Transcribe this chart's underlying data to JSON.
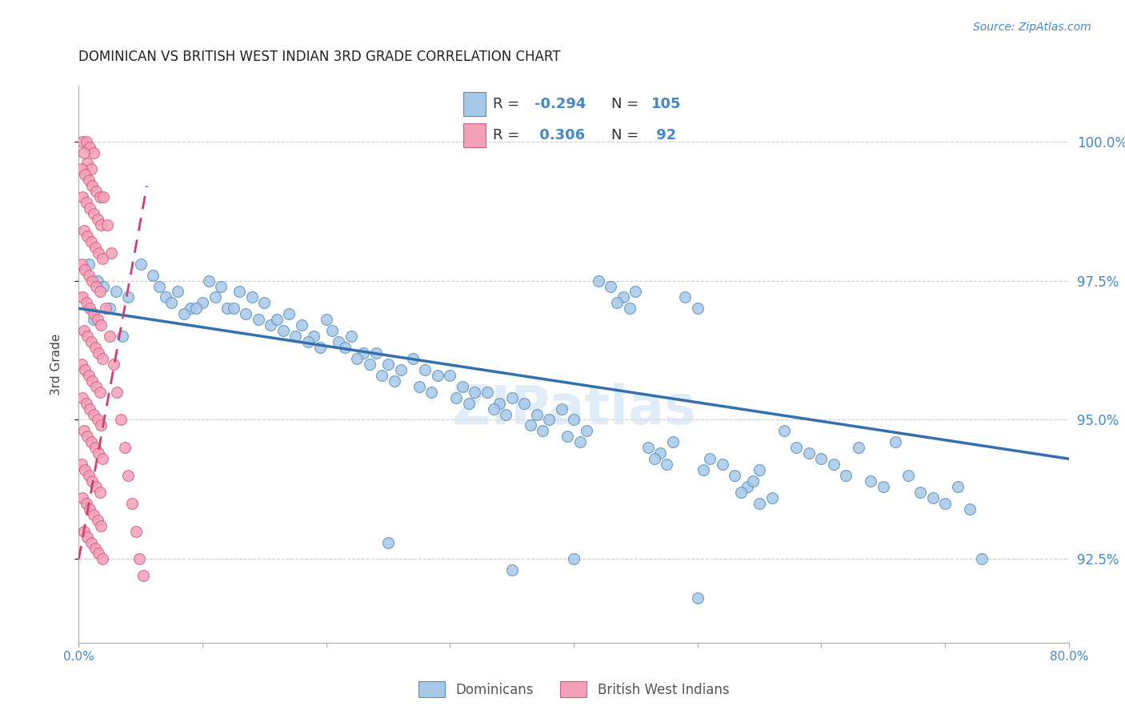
{
  "title": "DOMINICAN VS BRITISH WEST INDIAN 3RD GRADE CORRELATION CHART",
  "source": "Source: ZipAtlas.com",
  "ylabel": "3rd Grade",
  "legend_blue_label": "Dominicans",
  "legend_pink_label": "British West Indians",
  "xmin": 0.0,
  "xmax": 80.0,
  "ymin": 91.0,
  "ymax": 101.0,
  "yticks": [
    92.5,
    95.0,
    97.5,
    100.0
  ],
  "ytick_labels": [
    "92.5%",
    "95.0%",
    "97.5%",
    "100.0%"
  ],
  "blue_color": "#a8c8e8",
  "pink_color": "#f4a0b8",
  "blue_edge": "#5590c0",
  "pink_edge": "#d06080",
  "trend_blue": "#3370b0",
  "trend_pink": "#d04070",
  "blue_scatter": [
    [
      0.8,
      97.8
    ],
    [
      1.5,
      97.5
    ],
    [
      2.0,
      97.4
    ],
    [
      3.0,
      97.3
    ],
    [
      4.0,
      97.2
    ],
    [
      2.5,
      97.0
    ],
    [
      1.2,
      96.8
    ],
    [
      3.5,
      96.5
    ],
    [
      5.0,
      97.8
    ],
    [
      6.0,
      97.6
    ],
    [
      7.0,
      97.2
    ],
    [
      8.0,
      97.3
    ],
    [
      9.0,
      97.0
    ],
    [
      10.0,
      97.1
    ],
    [
      6.5,
      97.4
    ],
    [
      7.5,
      97.1
    ],
    [
      8.5,
      96.9
    ],
    [
      9.5,
      97.0
    ],
    [
      11.0,
      97.2
    ],
    [
      12.0,
      97.0
    ],
    [
      10.5,
      97.5
    ],
    [
      11.5,
      97.4
    ],
    [
      13.0,
      97.3
    ],
    [
      14.0,
      97.2
    ],
    [
      15.0,
      97.1
    ],
    [
      12.5,
      97.0
    ],
    [
      13.5,
      96.9
    ],
    [
      14.5,
      96.8
    ],
    [
      15.5,
      96.7
    ],
    [
      16.0,
      96.8
    ],
    [
      17.0,
      96.9
    ],
    [
      16.5,
      96.6
    ],
    [
      17.5,
      96.5
    ],
    [
      18.0,
      96.7
    ],
    [
      19.0,
      96.5
    ],
    [
      20.0,
      96.8
    ],
    [
      18.5,
      96.4
    ],
    [
      19.5,
      96.3
    ],
    [
      20.5,
      96.6
    ],
    [
      21.0,
      96.4
    ],
    [
      22.0,
      96.5
    ],
    [
      23.0,
      96.2
    ],
    [
      21.5,
      96.3
    ],
    [
      22.5,
      96.1
    ],
    [
      23.5,
      96.0
    ],
    [
      24.0,
      96.2
    ],
    [
      25.0,
      96.0
    ],
    [
      26.0,
      95.9
    ],
    [
      24.5,
      95.8
    ],
    [
      25.5,
      95.7
    ],
    [
      27.0,
      96.1
    ],
    [
      28.0,
      95.9
    ],
    [
      29.0,
      95.8
    ],
    [
      27.5,
      95.6
    ],
    [
      28.5,
      95.5
    ],
    [
      30.0,
      95.8
    ],
    [
      31.0,
      95.6
    ],
    [
      32.0,
      95.5
    ],
    [
      30.5,
      95.4
    ],
    [
      31.5,
      95.3
    ],
    [
      33.0,
      95.5
    ],
    [
      34.0,
      95.3
    ],
    [
      35.0,
      95.4
    ],
    [
      33.5,
      95.2
    ],
    [
      34.5,
      95.1
    ],
    [
      36.0,
      95.3
    ],
    [
      37.0,
      95.1
    ],
    [
      38.0,
      95.0
    ],
    [
      36.5,
      94.9
    ],
    [
      37.5,
      94.8
    ],
    [
      39.0,
      95.2
    ],
    [
      40.0,
      95.0
    ],
    [
      41.0,
      94.8
    ],
    [
      39.5,
      94.7
    ],
    [
      40.5,
      94.6
    ],
    [
      42.0,
      97.5
    ],
    [
      43.0,
      97.4
    ],
    [
      44.0,
      97.2
    ],
    [
      45.0,
      97.3
    ],
    [
      43.5,
      97.1
    ],
    [
      44.5,
      97.0
    ],
    [
      46.0,
      94.5
    ],
    [
      47.0,
      94.4
    ],
    [
      48.0,
      94.6
    ],
    [
      46.5,
      94.3
    ],
    [
      47.5,
      94.2
    ],
    [
      49.0,
      97.2
    ],
    [
      50.0,
      97.0
    ],
    [
      50.5,
      94.1
    ],
    [
      51.0,
      94.3
    ],
    [
      52.0,
      94.2
    ],
    [
      53.0,
      94.0
    ],
    [
      54.0,
      93.8
    ],
    [
      55.0,
      94.1
    ],
    [
      53.5,
      93.7
    ],
    [
      54.5,
      93.9
    ],
    [
      56.0,
      93.6
    ],
    [
      57.0,
      94.8
    ],
    [
      58.0,
      94.5
    ],
    [
      59.0,
      94.4
    ],
    [
      60.0,
      94.3
    ],
    [
      61.0,
      94.2
    ],
    [
      62.0,
      94.0
    ],
    [
      63.0,
      94.5
    ],
    [
      64.0,
      93.9
    ],
    [
      65.0,
      93.8
    ],
    [
      66.0,
      94.6
    ],
    [
      67.0,
      94.0
    ],
    [
      68.0,
      93.7
    ],
    [
      69.0,
      93.6
    ],
    [
      70.0,
      93.5
    ],
    [
      71.0,
      93.8
    ],
    [
      72.0,
      93.4
    ],
    [
      73.0,
      92.5
    ],
    [
      35.0,
      92.3
    ],
    [
      40.0,
      92.5
    ],
    [
      50.0,
      91.8
    ],
    [
      55.0,
      93.5
    ],
    [
      25.0,
      92.8
    ]
  ],
  "pink_scatter": [
    [
      0.3,
      100.0
    ],
    [
      0.6,
      100.0
    ],
    [
      0.9,
      99.9
    ],
    [
      1.2,
      99.8
    ],
    [
      0.4,
      99.8
    ],
    [
      0.7,
      99.6
    ],
    [
      1.0,
      99.5
    ],
    [
      0.2,
      99.5
    ],
    [
      0.5,
      99.4
    ],
    [
      0.8,
      99.3
    ],
    [
      1.1,
      99.2
    ],
    [
      1.4,
      99.1
    ],
    [
      1.7,
      99.0
    ],
    [
      0.3,
      99.0
    ],
    [
      0.6,
      98.9
    ],
    [
      0.9,
      98.8
    ],
    [
      1.2,
      98.7
    ],
    [
      1.5,
      98.6
    ],
    [
      1.8,
      98.5
    ],
    [
      0.4,
      98.4
    ],
    [
      0.7,
      98.3
    ],
    [
      1.0,
      98.2
    ],
    [
      1.3,
      98.1
    ],
    [
      1.6,
      98.0
    ],
    [
      1.9,
      97.9
    ],
    [
      0.2,
      97.8
    ],
    [
      0.5,
      97.7
    ],
    [
      0.8,
      97.6
    ],
    [
      1.1,
      97.5
    ],
    [
      1.4,
      97.4
    ],
    [
      1.7,
      97.3
    ],
    [
      0.3,
      97.2
    ],
    [
      0.6,
      97.1
    ],
    [
      0.9,
      97.0
    ],
    [
      1.2,
      96.9
    ],
    [
      1.5,
      96.8
    ],
    [
      1.8,
      96.7
    ],
    [
      0.4,
      96.6
    ],
    [
      0.7,
      96.5
    ],
    [
      1.0,
      96.4
    ],
    [
      1.3,
      96.3
    ],
    [
      1.6,
      96.2
    ],
    [
      1.9,
      96.1
    ],
    [
      0.2,
      96.0
    ],
    [
      0.5,
      95.9
    ],
    [
      0.8,
      95.8
    ],
    [
      1.1,
      95.7
    ],
    [
      1.4,
      95.6
    ],
    [
      1.7,
      95.5
    ],
    [
      0.3,
      95.4
    ],
    [
      0.6,
      95.3
    ],
    [
      0.9,
      95.2
    ],
    [
      1.2,
      95.1
    ],
    [
      1.5,
      95.0
    ],
    [
      1.8,
      94.9
    ],
    [
      0.4,
      94.8
    ],
    [
      0.7,
      94.7
    ],
    [
      1.0,
      94.6
    ],
    [
      1.3,
      94.5
    ],
    [
      1.6,
      94.4
    ],
    [
      1.9,
      94.3
    ],
    [
      0.2,
      94.2
    ],
    [
      0.5,
      94.1
    ],
    [
      0.8,
      94.0
    ],
    [
      1.1,
      93.9
    ],
    [
      1.4,
      93.8
    ],
    [
      1.7,
      93.7
    ],
    [
      0.3,
      93.6
    ],
    [
      0.6,
      93.5
    ],
    [
      0.9,
      93.4
    ],
    [
      1.2,
      93.3
    ],
    [
      1.5,
      93.2
    ],
    [
      1.8,
      93.1
    ],
    [
      0.4,
      93.0
    ],
    [
      0.7,
      92.9
    ],
    [
      1.0,
      92.8
    ],
    [
      1.3,
      92.7
    ],
    [
      1.6,
      92.6
    ],
    [
      1.9,
      92.5
    ],
    [
      2.2,
      97.0
    ],
    [
      2.5,
      96.5
    ],
    [
      2.8,
      96.0
    ],
    [
      3.1,
      95.5
    ],
    [
      3.4,
      95.0
    ],
    [
      3.7,
      94.5
    ],
    [
      4.0,
      94.0
    ],
    [
      4.3,
      93.5
    ],
    [
      4.6,
      93.0
    ],
    [
      4.9,
      92.5
    ],
    [
      5.2,
      92.2
    ],
    [
      2.0,
      99.0
    ],
    [
      2.3,
      98.5
    ],
    [
      2.6,
      98.0
    ]
  ],
  "blue_trend_x": [
    0.0,
    80.0
  ],
  "blue_trend_y": [
    97.0,
    94.3
  ],
  "pink_trend_x": [
    0.0,
    5.5
  ],
  "pink_trend_y": [
    92.5,
    99.2
  ]
}
